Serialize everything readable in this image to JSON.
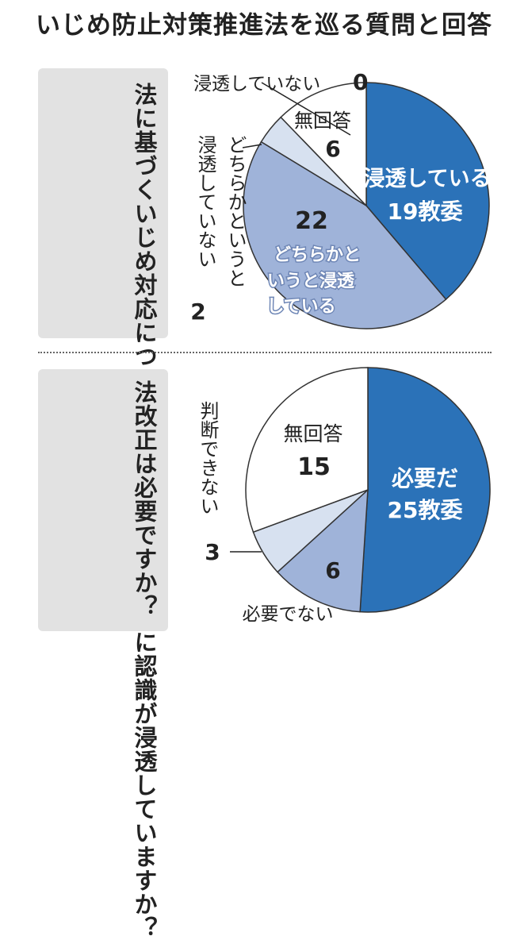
{
  "title": "いじめ防止対策推進法を巡る質問と回答",
  "colors": {
    "dark_blue": "#2b72b8",
    "mid_blue": "#9fb3d9",
    "light_blue": "#d7e1f0",
    "white": "#ffffff",
    "question_box": "#e2e2e2"
  },
  "chart_data": [
    {
      "type": "pie",
      "title": "法に基づくいじめ対応について、教職員の間で十分に認識が浸透していますか？",
      "unit": "教委",
      "slices": [
        {
          "label": "浸透している",
          "value": 19,
          "value_text": "19教委"
        },
        {
          "label": "どちらかというと浸透している",
          "value": 22,
          "value_text": "22"
        },
        {
          "label": "どちらかというと浸透していない",
          "value": 2,
          "value_text": "2"
        },
        {
          "label": "無回答",
          "value": 6,
          "value_text": "6"
        },
        {
          "label": "浸透していない",
          "value": 0,
          "value_text": "0"
        }
      ]
    },
    {
      "type": "pie",
      "title": "法改正は必要ですか？",
      "unit": "教委",
      "slices": [
        {
          "label": "必要だ",
          "value": 25,
          "value_text": "25教委"
        },
        {
          "label": "必要でない",
          "value": 6,
          "value_text": "6"
        },
        {
          "label": "判断できない",
          "value": 3,
          "value_text": "3"
        },
        {
          "label": "無回答",
          "value": 15,
          "value_text": "15"
        }
      ]
    }
  ]
}
